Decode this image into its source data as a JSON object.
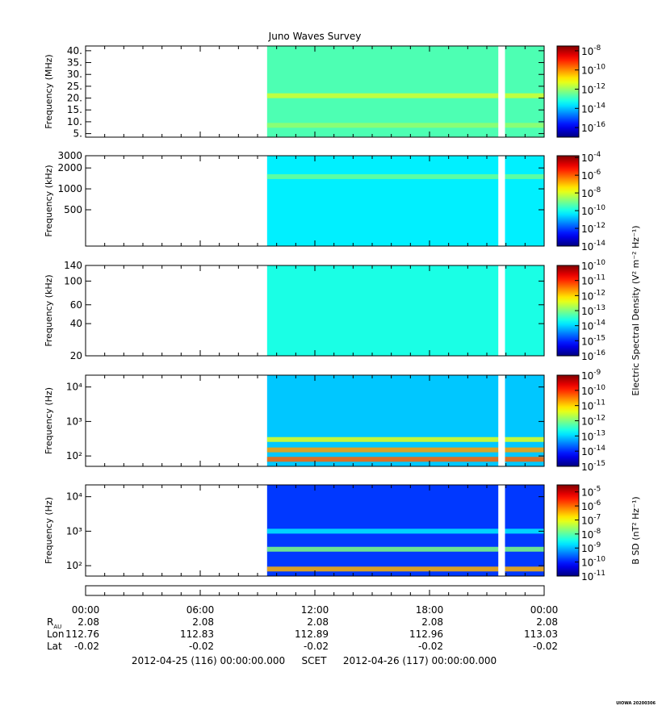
{
  "title": "Juno Waves Survey",
  "footer_stamp": "UIOWA 20200306",
  "chart_data": [
    {
      "type": "heatmap",
      "ylabel": "Frequency (MHz)",
      "yscale": "linear",
      "ylim": [
        3.5,
        42
      ],
      "yticks": [
        5,
        10,
        15,
        20,
        25,
        30,
        35,
        40
      ],
      "ytick_labels": [
        "5.",
        "10.",
        "15.",
        "20.",
        "25.",
        "30.",
        "35.",
        "40."
      ],
      "colorbar": {
        "label": "",
        "range_log10": [
          -17,
          -7.5
        ],
        "tick_exponents": [
          -8,
          -10,
          -12,
          -14,
          -16
        ]
      },
      "data_start_hour": 9.5,
      "gap_hours": [
        21.6,
        21.95
      ],
      "background_level": 0.45,
      "bands": [
        {
          "value": 21,
          "level": 0.58
        },
        {
          "value": 8.5,
          "level": 0.52
        }
      ]
    },
    {
      "type": "heatmap",
      "ylabel": "Frequency (kHz)",
      "yscale": "log",
      "ylim": [
        150,
        3000
      ],
      "yticks": [
        500,
        1000,
        2000,
        3000
      ],
      "ytick_labels": [
        "500",
        "1000",
        "2000",
        "3000"
      ],
      "colorbar": {
        "label": "",
        "range_log10": [
          -14,
          -3.8
        ],
        "tick_exponents": [
          -4,
          -6,
          -8,
          -10,
          -12,
          -14
        ]
      },
      "data_start_hour": 9.5,
      "gap_hours": [
        21.6,
        21.95
      ],
      "background_level": 0.36,
      "bands": [
        {
          "value": 1500,
          "level": 0.48
        }
      ]
    },
    {
      "type": "heatmap",
      "ylabel": "Frequency (kHz)",
      "yscale": "log",
      "ylim": [
        20,
        140
      ],
      "yticks": [
        20,
        40,
        60,
        100,
        140
      ],
      "ytick_labels": [
        "20",
        "40",
        "60",
        "100",
        "140"
      ],
      "colorbar": {
        "label": "Electric Spectral Density (V² m⁻² Hz⁻¹)",
        "range_log10": [
          -16,
          -10
        ],
        "tick_exponents": [
          -10,
          -11,
          -12,
          -13,
          -14,
          -15,
          -16
        ]
      },
      "data_start_hour": 9.5,
      "gap_hours": [
        21.6,
        21.95
      ],
      "background_level": 0.4,
      "bands": []
    },
    {
      "type": "heatmap",
      "ylabel": "Frequency (Hz)",
      "yscale": "log",
      "ylim": [
        50,
        22000
      ],
      "yticks": [
        100,
        1000,
        10000
      ],
      "ytick_labels": [
        "10²",
        "10³",
        "10⁴"
      ],
      "colorbar": {
        "label": "",
        "range_log10": [
          -15,
          -9
        ],
        "tick_exponents": [
          -9,
          -10,
          -11,
          -12,
          -13,
          -14,
          -15
        ]
      },
      "data_start_hour": 9.5,
      "gap_hours": [
        21.6,
        21.95
      ],
      "background_level": 0.32,
      "bands": [
        {
          "value": 80,
          "level": 0.78
        },
        {
          "value": 150,
          "level": 0.72
        },
        {
          "value": 300,
          "level": 0.6
        }
      ]
    },
    {
      "type": "heatmap",
      "ylabel": "Frequency (Hz)",
      "yscale": "log",
      "ylim": [
        50,
        22000
      ],
      "yticks": [
        100,
        1000,
        10000
      ],
      "ytick_labels": [
        "10²",
        "10³",
        "10⁴"
      ],
      "colorbar": {
        "label": "B SD (nT² Hz⁻¹)",
        "range_log10": [
          -11,
          -4.5
        ],
        "tick_exponents": [
          -5,
          -6,
          -7,
          -8,
          -9,
          -10,
          -11
        ]
      },
      "data_start_hour": 9.5,
      "gap_hours": [
        21.6,
        21.95
      ],
      "background_level": 0.18,
      "bands": [
        {
          "value": 80,
          "level": 0.7
        },
        {
          "value": 300,
          "level": 0.5
        },
        {
          "value": 1000,
          "level": 0.36
        }
      ]
    }
  ],
  "x_axis": {
    "range_hours": [
      0,
      24
    ],
    "tick_labels": [
      "00:00",
      "06:00",
      "12:00",
      "18:00",
      "00:00"
    ],
    "rows": [
      {
        "label": "R",
        "sub": "AU",
        "values": [
          "2.08",
          "2.08",
          "2.08",
          "2.08",
          "2.08"
        ]
      },
      {
        "label": "Lon",
        "sub": "",
        "values": [
          "112.76",
          "112.83",
          "112.89",
          "112.96",
          "113.03"
        ]
      },
      {
        "label": "Lat",
        "sub": "",
        "values": [
          "-0.02",
          "-0.02",
          "-0.02",
          "-0.02",
          "-0.02"
        ]
      }
    ],
    "time_range": {
      "start": "2012-04-25 (116) 00:00:00.000",
      "label": "SCET",
      "end": "2012-04-26 (117) 00:00:00.000"
    }
  }
}
